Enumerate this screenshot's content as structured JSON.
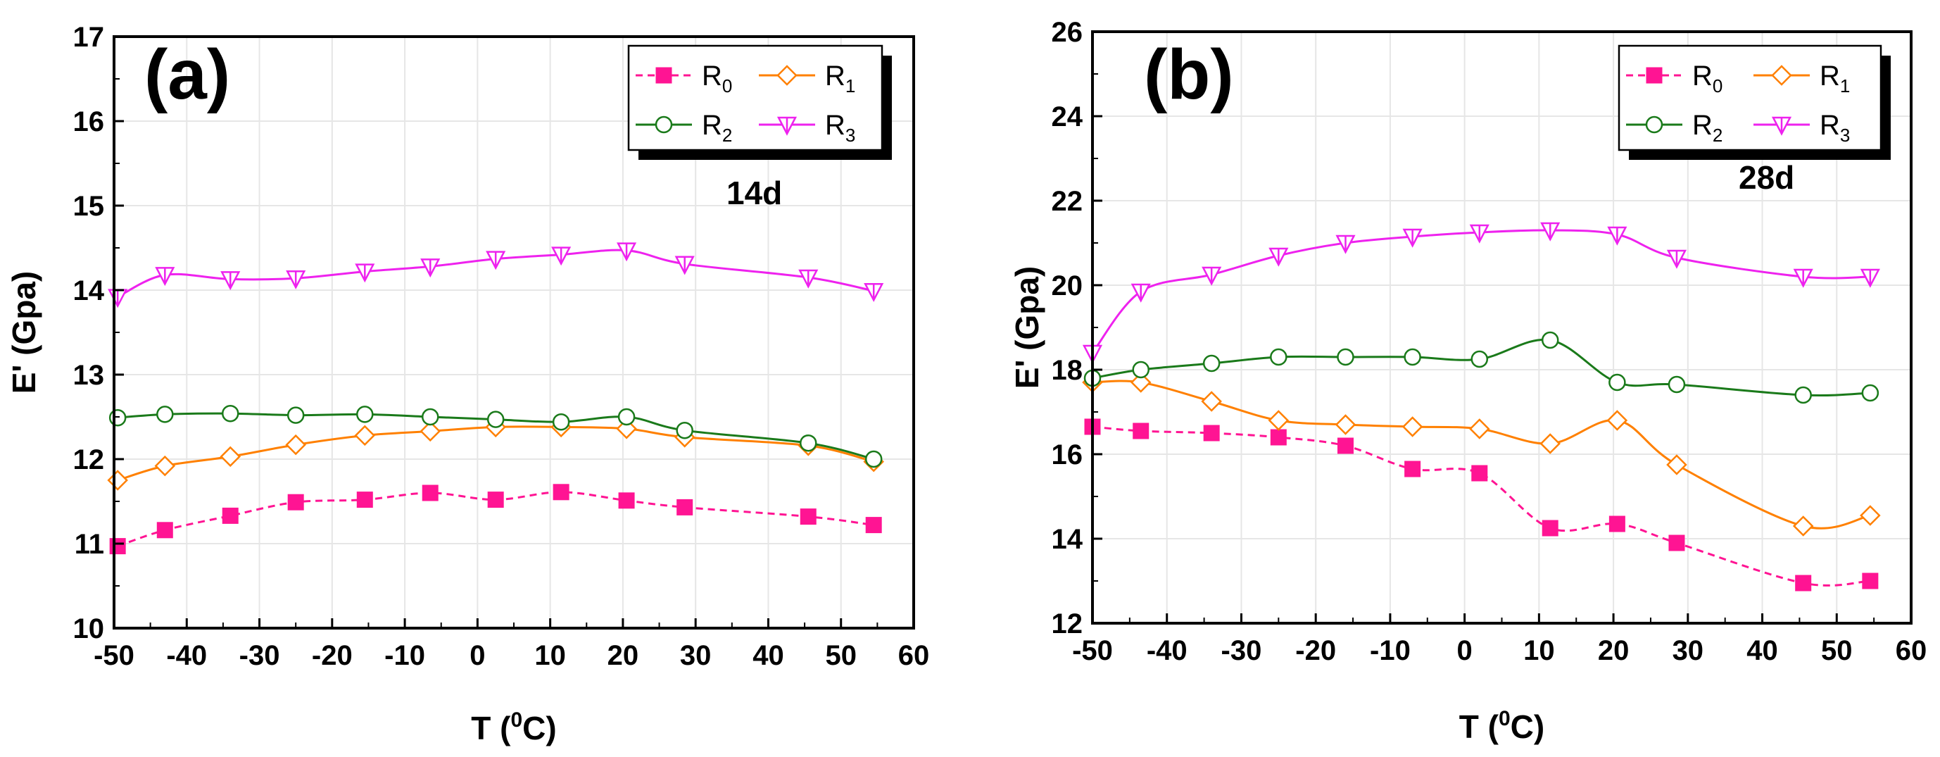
{
  "figure_description": "Temperature dependence of storage modulus E' for R0–R3 mixtures at 14d and 28d",
  "chart_data": [
    {
      "type": "line",
      "panel_label": "(a)",
      "age_label": "14d",
      "xlabel": "T (",
      "xlabel_sup": "0",
      "xlabel_end": "C)",
      "ylabel": "E' (Gpa)",
      "xlim": [
        -50,
        60
      ],
      "ylim": [
        10,
        17
      ],
      "xticks": [
        -50,
        -40,
        -30,
        -20,
        -10,
        0,
        10,
        20,
        30,
        40,
        50,
        60
      ],
      "yticks": [
        10,
        11,
        12,
        13,
        14,
        15,
        16,
        17
      ],
      "x": [
        -49.5,
        -43,
        -34,
        -25,
        -15.5,
        -6.5,
        2.5,
        11.5,
        20.5,
        28.5,
        45.5,
        54.5
      ],
      "series": [
        {
          "name": "R",
          "sub": "0",
          "color": "#ff1493",
          "marker": "square",
          "dash": true,
          "values": [
            10.97,
            11.16,
            11.33,
            11.49,
            11.52,
            11.6,
            11.52,
            11.61,
            11.51,
            11.43,
            11.32,
            11.22
          ]
        },
        {
          "name": "R",
          "sub": "1",
          "color": "#ff8000",
          "marker": "diamond",
          "dash": false,
          "values": [
            11.75,
            11.92,
            12.03,
            12.17,
            12.28,
            12.33,
            12.38,
            12.38,
            12.36,
            12.26,
            12.16,
            11.97
          ]
        },
        {
          "name": "R",
          "sub": "2",
          "color": "#1a7a1a",
          "marker": "circle",
          "dash": false,
          "values": [
            12.49,
            12.53,
            12.54,
            12.52,
            12.53,
            12.5,
            12.47,
            12.44,
            12.5,
            12.34,
            12.19,
            12.0
          ]
        },
        {
          "name": "R",
          "sub": "3",
          "color": "#ee22ee",
          "marker": "triangle",
          "dash": false,
          "values": [
            13.92,
            14.18,
            14.13,
            14.14,
            14.22,
            14.28,
            14.37,
            14.42,
            14.47,
            14.31,
            14.15,
            13.99
          ]
        }
      ]
    },
    {
      "type": "line",
      "panel_label": "(b)",
      "age_label": "28d",
      "xlabel": "T (",
      "xlabel_sup": "0",
      "xlabel_end": "C)",
      "ylabel": "E' (Gpa)",
      "xlim": [
        -50,
        60
      ],
      "ylim": [
        12,
        26
      ],
      "xticks": [
        -50,
        -40,
        -30,
        -20,
        -10,
        0,
        10,
        20,
        30,
        40,
        50,
        60
      ],
      "yticks": [
        12,
        14,
        16,
        18,
        20,
        22,
        24,
        26
      ],
      "x": [
        -50,
        -43.5,
        -34,
        -25,
        -16,
        -7,
        2,
        11.5,
        20.5,
        28.5,
        45.5,
        54.5
      ],
      "series": [
        {
          "name": "R",
          "sub": "0",
          "color": "#ff1493",
          "marker": "square",
          "dash": true,
          "values": [
            16.65,
            16.55,
            16.5,
            16.4,
            16.2,
            15.65,
            15.55,
            14.25,
            14.35,
            13.9,
            12.95,
            13.0
          ]
        },
        {
          "name": "R",
          "sub": "1",
          "color": "#ff8000",
          "marker": "diamond",
          "dash": false,
          "values": [
            17.7,
            17.7,
            17.25,
            16.8,
            16.7,
            16.65,
            16.6,
            16.25,
            16.8,
            15.75,
            14.3,
            14.55
          ]
        },
        {
          "name": "R",
          "sub": "2",
          "color": "#1a7a1a",
          "marker": "circle",
          "dash": false,
          "values": [
            17.8,
            18.0,
            18.15,
            18.3,
            18.3,
            18.3,
            18.25,
            18.7,
            17.7,
            17.65,
            17.4,
            17.45
          ]
        },
        {
          "name": "R",
          "sub": "3",
          "color": "#ee22ee",
          "marker": "triangle",
          "dash": false,
          "values": [
            18.4,
            19.85,
            20.25,
            20.7,
            21.0,
            21.15,
            21.25,
            21.3,
            21.2,
            20.65,
            20.2,
            20.2
          ]
        }
      ]
    }
  ]
}
